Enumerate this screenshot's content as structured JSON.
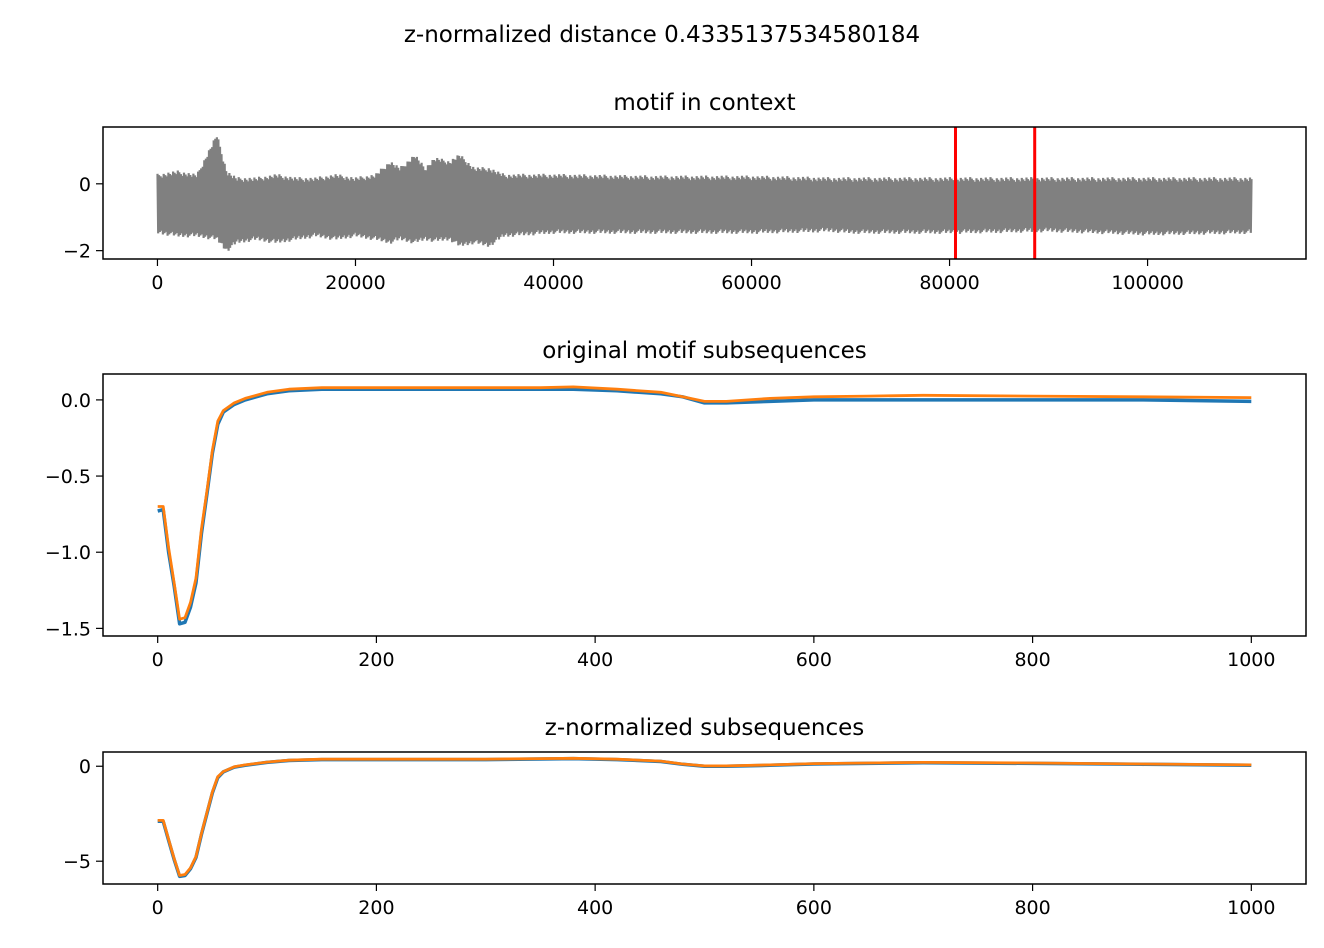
{
  "figure": {
    "suptitle": "z-normalized distance 0.4335137534580184"
  },
  "colors": {
    "context": "#808080",
    "markers": "#ff0000",
    "series_1": "#1f77b4",
    "series_2": "#ff7f0e"
  },
  "chart_data": [
    {
      "type": "line",
      "title": "motif in context",
      "xlabel": "",
      "ylabel": "",
      "xlim": [
        -5500,
        116000
      ],
      "ylim": [
        -2.25,
        1.7
      ],
      "xticks": [
        0,
        20000,
        40000,
        60000,
        80000,
        100000
      ],
      "xtick_labels": [
        "0",
        "20000",
        "40000",
        "60000",
        "80000",
        "100000"
      ],
      "yticks": [
        0,
        -2
      ],
      "ytick_labels": [
        "0",
        "−2"
      ],
      "grid": false,
      "series": [
        {
          "color": "#808080",
          "style": "dense oscillating envelope",
          "x": [
            0,
            2000,
            4000,
            6000,
            7000,
            8000,
            10000,
            12000,
            14000,
            16000,
            18000,
            20000,
            22000,
            23500,
            24500,
            26000,
            27000,
            28000,
            29500,
            30500,
            32000,
            33500,
            35000,
            40000,
            50000,
            60000,
            68000,
            70000,
            80000,
            90000,
            100000,
            110500
          ],
          "upper": [
            0.3,
            0.4,
            0.3,
            1.5,
            0.4,
            0.2,
            0.2,
            0.3,
            0.2,
            0.2,
            0.3,
            0.2,
            0.3,
            0.7,
            0.5,
            0.9,
            0.5,
            0.8,
            0.7,
            0.9,
            0.5,
            0.5,
            0.3,
            0.3,
            0.25,
            0.25,
            0.2,
            0.2,
            0.2,
            0.2,
            0.2,
            0.2
          ],
          "lower": [
            -1.5,
            -1.6,
            -1.6,
            -1.7,
            -2.05,
            -1.8,
            -1.7,
            -1.8,
            -1.7,
            -1.6,
            -1.7,
            -1.6,
            -1.7,
            -1.8,
            -1.7,
            -1.8,
            -1.7,
            -1.75,
            -1.7,
            -1.9,
            -1.8,
            -1.9,
            -1.6,
            -1.5,
            -1.5,
            -1.5,
            -1.45,
            -1.5,
            -1.5,
            -1.45,
            -1.55,
            -1.5
          ]
        }
      ],
      "vlines": [
        {
          "x": 80600,
          "color": "#ff0000"
        },
        {
          "x": 88600,
          "color": "#ff0000"
        }
      ]
    },
    {
      "type": "line",
      "title": "original motif subsequences",
      "xlabel": "",
      "ylabel": "",
      "xlim": [
        -50,
        1050
      ],
      "ylim": [
        -1.55,
        0.17
      ],
      "xticks": [
        0,
        200,
        400,
        600,
        800,
        1000
      ],
      "xtick_labels": [
        "0",
        "200",
        "400",
        "600",
        "800",
        "1000"
      ],
      "yticks": [
        0.0,
        -0.5,
        -1.0,
        -1.5
      ],
      "ytick_labels": [
        "0.0",
        "−0.5",
        "−1.0",
        "−1.5"
      ],
      "grid": false,
      "x": [
        0,
        5,
        10,
        15,
        20,
        25,
        30,
        35,
        40,
        45,
        50,
        55,
        60,
        70,
        80,
        100,
        120,
        150,
        200,
        250,
        300,
        350,
        380,
        420,
        460,
        480,
        500,
        520,
        560,
        600,
        650,
        700,
        800,
        900,
        1000
      ],
      "series": [
        {
          "color": "#1f77b4",
          "values": [
            -0.73,
            -0.72,
            -1.0,
            -1.22,
            -1.47,
            -1.46,
            -1.36,
            -1.2,
            -0.88,
            -0.62,
            -0.35,
            -0.16,
            -0.08,
            -0.03,
            0.0,
            0.04,
            0.06,
            0.07,
            0.07,
            0.07,
            0.07,
            0.07,
            0.07,
            0.06,
            0.04,
            0.02,
            -0.02,
            -0.02,
            -0.01,
            0.0,
            0.0,
            0.0,
            0.0,
            0.0,
            -0.01
          ]
        },
        {
          "color": "#ff7f0e",
          "values": [
            -0.7,
            -0.7,
            -0.97,
            -1.2,
            -1.44,
            -1.43,
            -1.33,
            -1.17,
            -0.85,
            -0.6,
            -0.33,
            -0.14,
            -0.07,
            -0.02,
            0.01,
            0.05,
            0.07,
            0.08,
            0.08,
            0.08,
            0.08,
            0.08,
            0.085,
            0.07,
            0.05,
            0.02,
            -0.01,
            -0.01,
            0.01,
            0.02,
            0.025,
            0.03,
            0.025,
            0.02,
            0.015
          ]
        }
      ]
    },
    {
      "type": "line",
      "title": "z-normalized subsequences",
      "xlabel": "",
      "ylabel": "",
      "xlim": [
        -50,
        1050
      ],
      "ylim": [
        -6.2,
        0.75
      ],
      "xticks": [
        0,
        200,
        400,
        600,
        800,
        1000
      ],
      "xtick_labels": [
        "0",
        "200",
        "400",
        "600",
        "800",
        "1000"
      ],
      "yticks": [
        0,
        -5
      ],
      "ytick_labels": [
        "0",
        "−5"
      ],
      "grid": false,
      "x": [
        0,
        5,
        10,
        15,
        20,
        25,
        30,
        35,
        40,
        45,
        50,
        55,
        60,
        70,
        80,
        100,
        120,
        150,
        200,
        250,
        300,
        350,
        380,
        420,
        460,
        480,
        500,
        520,
        560,
        600,
        650,
        700,
        800,
        900,
        1000
      ],
      "series": [
        {
          "color": "#1f77b4",
          "values": [
            -2.9,
            -2.9,
            -3.9,
            -4.9,
            -5.8,
            -5.75,
            -5.4,
            -4.8,
            -3.6,
            -2.5,
            -1.4,
            -0.6,
            -0.3,
            -0.05,
            0.05,
            0.2,
            0.3,
            0.35,
            0.35,
            0.35,
            0.35,
            0.38,
            0.4,
            0.35,
            0.25,
            0.1,
            0.0,
            0.0,
            0.05,
            0.12,
            0.15,
            0.18,
            0.15,
            0.1,
            0.05
          ]
        },
        {
          "color": "#ff7f0e",
          "values": [
            -2.85,
            -2.85,
            -3.85,
            -4.85,
            -5.75,
            -5.7,
            -5.35,
            -4.75,
            -3.55,
            -2.45,
            -1.35,
            -0.55,
            -0.28,
            -0.03,
            0.07,
            0.22,
            0.32,
            0.37,
            0.37,
            0.37,
            0.37,
            0.4,
            0.42,
            0.37,
            0.27,
            0.12,
            0.02,
            0.02,
            0.07,
            0.14,
            0.17,
            0.2,
            0.17,
            0.12,
            0.07
          ]
        }
      ]
    }
  ]
}
